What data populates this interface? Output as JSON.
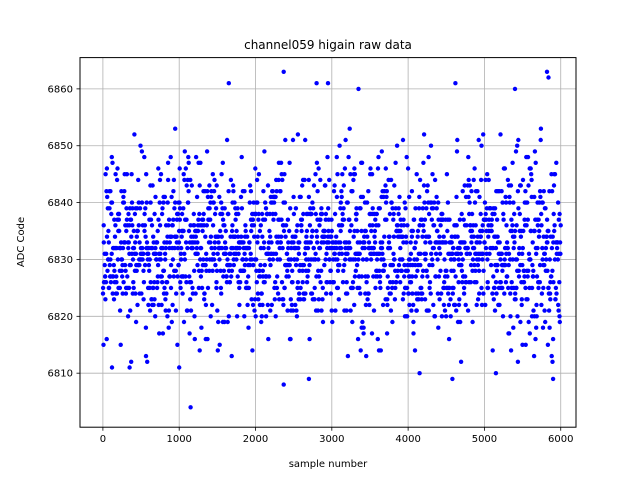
{
  "chart_data": {
    "type": "scatter",
    "title": "channel059 higain raw data",
    "xlabel": "sample number",
    "ylabel": "ADC Code",
    "xlim": [
      -300,
      6200
    ],
    "ylim": [
      6800.5,
      6865.5
    ],
    "xticks": [
      0,
      1000,
      2000,
      3000,
      4000,
      5000,
      6000
    ],
    "yticks": [
      6810,
      6820,
      6830,
      6840,
      6850,
      6860
    ],
    "grid": true,
    "marker_color": "#0000ff",
    "series": [
      {
        "n_samples": 6000,
        "typical_mean": 6832,
        "typical_range": [
          6815,
          6850
        ],
        "notable_points": [
          {
            "x": 1150,
            "y": 6804
          },
          {
            "x": 2370,
            "y": 6808
          },
          {
            "x": 2370,
            "y": 6863
          },
          {
            "x": 1650,
            "y": 6861
          },
          {
            "x": 2800,
            "y": 6861
          },
          {
            "x": 2950,
            "y": 6861
          },
          {
            "x": 4620,
            "y": 6861
          },
          {
            "x": 5820,
            "y": 6863
          },
          {
            "x": 5840,
            "y": 6862
          },
          {
            "x": 5400,
            "y": 6860
          },
          {
            "x": 3350,
            "y": 6860
          },
          {
            "x": 4150,
            "y": 6810
          },
          {
            "x": 5150,
            "y": 6810
          },
          {
            "x": 5900,
            "y": 6809
          },
          {
            "x": 4580,
            "y": 6809
          },
          {
            "x": 2700,
            "y": 6809
          },
          {
            "x": 1000,
            "y": 6811
          },
          {
            "x": 120,
            "y": 6811
          },
          {
            "x": 350,
            "y": 6811
          }
        ]
      }
    ]
  }
}
